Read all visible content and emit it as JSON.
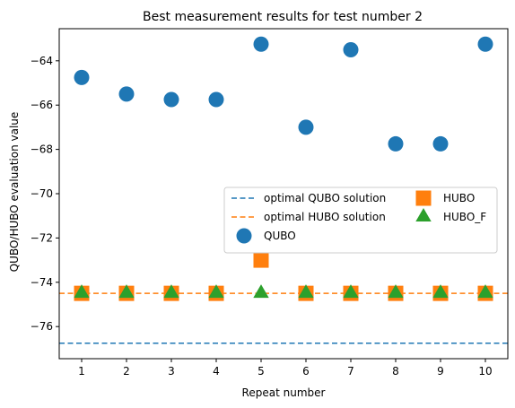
{
  "chart_data": {
    "type": "scatter",
    "title": "Best measurement results for test number 2",
    "xlabel": "Repeat number",
    "ylabel": "QUBO/HUBO evaluation value",
    "xlim": [
      0.5,
      10.5
    ],
    "ylim": [
      -77.45,
      -62.55
    ],
    "xticks": [
      1,
      2,
      3,
      4,
      5,
      6,
      7,
      8,
      9,
      10
    ],
    "yticks": [
      -76,
      -74,
      -72,
      -70,
      -68,
      -66,
      -64
    ],
    "grid": false,
    "legend_position": "center-right",
    "hlines": [
      {
        "name": "optimal QUBO solution",
        "y": -76.75,
        "color": "#1f77b4",
        "style": "dashed"
      },
      {
        "name": "optimal HUBO solution",
        "y": -74.5,
        "color": "#ff7f0e",
        "style": "dashed"
      }
    ],
    "series": [
      {
        "name": "QUBO",
        "marker": "circle",
        "color": "#1f77b4",
        "x": [
          1,
          2,
          3,
          4,
          5,
          6,
          7,
          8,
          9,
          10
        ],
        "y": [
          -64.75,
          -65.5,
          -65.75,
          -65.75,
          -63.25,
          -67.0,
          -63.5,
          -67.75,
          -67.75,
          -63.25
        ]
      },
      {
        "name": "HUBO",
        "marker": "square",
        "color": "#ff7f0e",
        "x": [
          1,
          2,
          3,
          4,
          5,
          6,
          7,
          8,
          9,
          10
        ],
        "y": [
          -74.5,
          -74.5,
          -74.5,
          -74.5,
          -73.0,
          -74.5,
          -74.5,
          -74.5,
          -74.5,
          -74.5
        ]
      },
      {
        "name": "HUBO_F",
        "marker": "triangle",
        "color": "#2ca02c",
        "x": [
          1,
          2,
          3,
          4,
          5,
          6,
          7,
          8,
          9,
          10
        ],
        "y": [
          -74.5,
          -74.5,
          -74.5,
          -74.5,
          -74.5,
          -74.5,
          -74.5,
          -74.5,
          -74.5,
          -74.5
        ]
      }
    ]
  }
}
